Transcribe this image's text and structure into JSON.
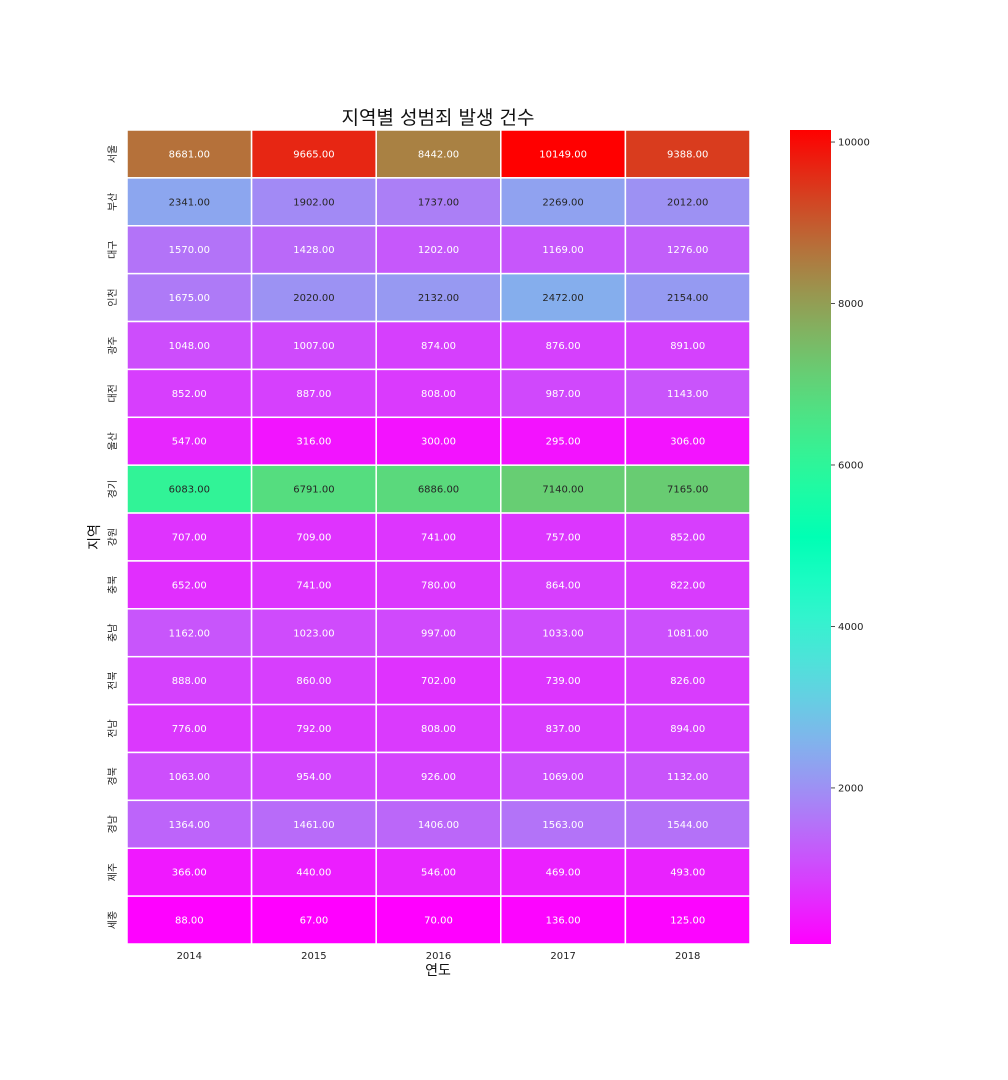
{
  "chart_data": {
    "type": "heatmap",
    "title": "지역별 성범죄 발생 건수",
    "xlabel": "연도",
    "ylabel": "지역",
    "x": [
      "2014",
      "2015",
      "2016",
      "2017",
      "2018"
    ],
    "y": [
      "서울",
      "부산",
      "대구",
      "인천",
      "광주",
      "대전",
      "울산",
      "경기",
      "강원",
      "충북",
      "충남",
      "전북",
      "전남",
      "경북",
      "경남",
      "제주",
      "세종"
    ],
    "values": [
      [
        8681,
        9665,
        8442,
        10149,
        9388
      ],
      [
        2341,
        1902,
        1737,
        2269,
        2012
      ],
      [
        1570,
        1428,
        1202,
        1169,
        1276
      ],
      [
        1675,
        2020,
        2132,
        2472,
        2154
      ],
      [
        1048,
        1007,
        874,
        876,
        891
      ],
      [
        852,
        887,
        808,
        987,
        1143
      ],
      [
        547,
        316,
        300,
        295,
        306
      ],
      [
        6083,
        6791,
        6886,
        7140,
        7165
      ],
      [
        707,
        709,
        741,
        757,
        852
      ],
      [
        652,
        741,
        780,
        864,
        822
      ],
      [
        1162,
        1023,
        997,
        1033,
        1081
      ],
      [
        888,
        860,
        702,
        739,
        826
      ],
      [
        776,
        792,
        808,
        837,
        894
      ],
      [
        1063,
        954,
        926,
        1069,
        1132
      ],
      [
        1364,
        1461,
        1406,
        1563,
        1544
      ],
      [
        366,
        440,
        546,
        469,
        493
      ],
      [
        88,
        67,
        70,
        136,
        125
      ]
    ],
    "value_format": "2 decimals",
    "colormap": "rainbow",
    "colorbar": {
      "vmin": 67,
      "vmax": 10149,
      "ticks": [
        2000,
        4000,
        6000,
        8000,
        10000
      ]
    },
    "grid_line_color": "#ffffff"
  }
}
